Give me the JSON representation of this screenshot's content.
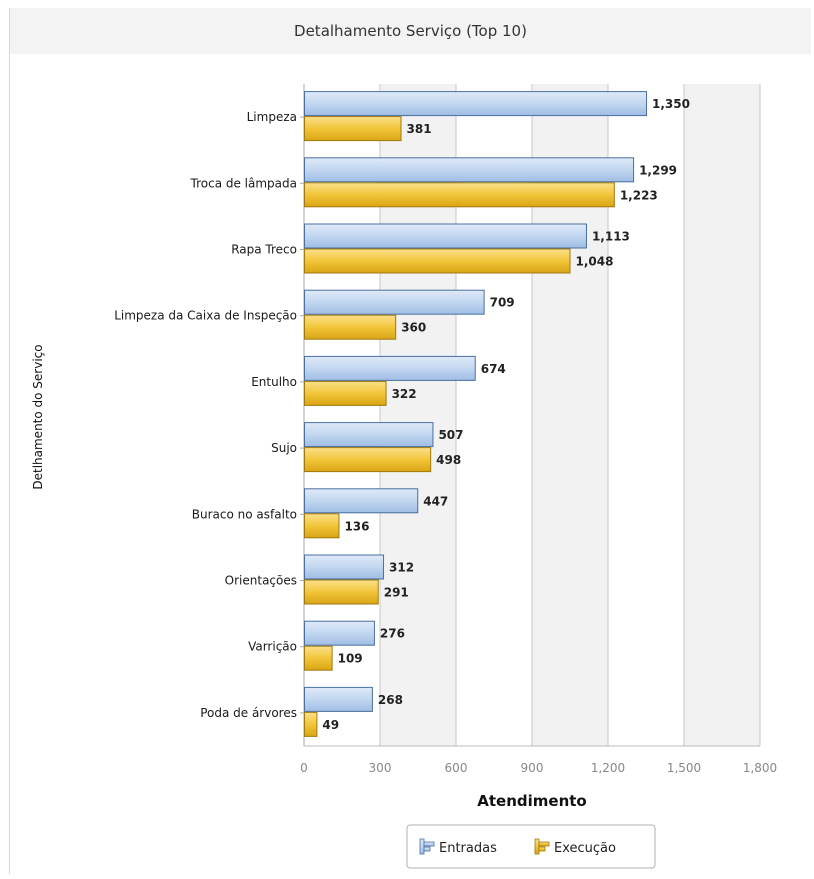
{
  "chart_data": {
    "type": "bar",
    "orientation": "horizontal",
    "title": "Detalhamento Serviço (Top 10)",
    "xlabel": "Atendimento",
    "ylabel": "Detlhamento do Serviço",
    "categories": [
      "Limpeza",
      "Troca de lâmpada",
      "Rapa Treco",
      "Limpeza da Caixa de Inspeção",
      "Entulho",
      "Sujo",
      "Buraco no asfalto",
      "Orientações",
      "Varrição",
      "Poda de árvores"
    ],
    "series": [
      {
        "name": "Entradas",
        "values": [
          1350,
          1299,
          1113,
          709,
          674,
          507,
          447,
          312,
          276,
          268
        ],
        "labels": [
          "1,350",
          "1,299",
          "1,113",
          "709",
          "674",
          "507",
          "447",
          "312",
          "276",
          "268"
        ],
        "color": "#b8d1ee",
        "border": "#4a6fa0"
      },
      {
        "name": "Execução",
        "values": [
          381,
          1223,
          1048,
          360,
          322,
          498,
          136,
          291,
          109,
          49
        ],
        "labels": [
          "381",
          "1,223",
          "1,048",
          "360",
          "322",
          "498",
          "136",
          "291",
          "109",
          "49"
        ],
        "color": "#f0c033",
        "border": "#a07a10"
      }
    ],
    "xlim": [
      0,
      1800
    ],
    "xticks": [
      0,
      300,
      600,
      900,
      1200,
      1500,
      1800
    ],
    "xtick_labels": [
      "0",
      "300",
      "600",
      "900",
      "1,200",
      "1,500",
      "1,800"
    ],
    "grid": true,
    "legend": "bottom-center"
  }
}
